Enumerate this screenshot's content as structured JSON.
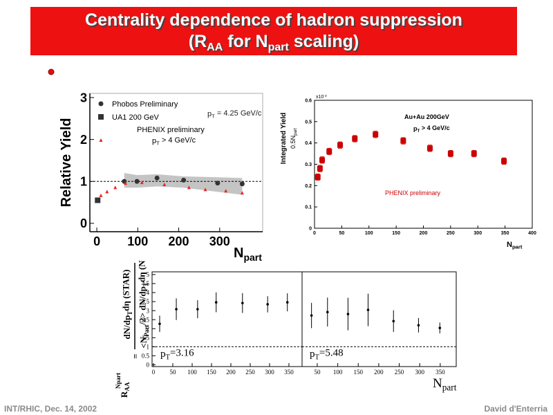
{
  "slide": {
    "title_line1": "Centrality dependence of hadron suppression",
    "title_line2": [
      "(R",
      "AA",
      " for N",
      "part",
      " scaling)"
    ],
    "footer_left": "INT/RHIC, Dec. 14, 2002",
    "footer_right": "David d'Enterria"
  },
  "chart_data": [
    {
      "type": "scatter",
      "ylabel": "Relative Yield",
      "xlabel": [
        "N",
        "part"
      ],
      "xlim": [
        -17,
        405
      ],
      "ylim": [
        -0.2,
        3.1
      ],
      "xticks": [
        0,
        100,
        200,
        300
      ],
      "yticks": [
        0,
        1,
        2,
        3
      ],
      "reference_line": 1,
      "legend_title": "PHENIX preliminary",
      "annotations": [
        {
          "text": [
            "p",
            "T",
            " = 4.25 GeV/c"
          ],
          "color": "#222222"
        }
      ],
      "series": [
        {
          "name": "Phobos Preliminary",
          "color": "#333333",
          "marker": "circle",
          "x": [
            67,
            98,
            147,
            212,
            295,
            355
          ],
          "values": [
            1.0,
            1.0,
            1.08,
            1.03,
            0.96,
            0.94
          ],
          "band": {
            "color": "#c4c4c4",
            "lower": [
              0.85,
              0.85,
              0.88,
              0.85,
              0.75,
              0.68
            ],
            "upper": [
              1.2,
              1.15,
              1.17,
              1.12,
              1.1,
              1.08
            ]
          }
        },
        {
          "name": "UA1 200 GeV",
          "color": "#333333",
          "marker": "square",
          "x": [
            2
          ],
          "values": [
            0.55
          ]
        },
        {
          "name": [
            "p",
            "T",
            " > 4 GeV/c"
          ],
          "color": "#ee2222",
          "marker": "triangle",
          "x": [
            10,
            25,
            45,
            70,
            110,
            165,
            225,
            265,
            315,
            355
          ],
          "values": [
            0.66,
            0.75,
            0.85,
            0.95,
            0.97,
            0.92,
            0.85,
            0.8,
            0.77,
            0.72
          ]
        }
      ]
    },
    {
      "type": "scatter",
      "ylabel": "Integrated Yield",
      "ylabel2": [
        "0.5N",
        "part"
      ],
      "xlabel": [
        "N",
        "part"
      ],
      "exponent": [
        "x10",
        "-3"
      ],
      "xlim": [
        0,
        400
      ],
      "ylim": [
        0,
        0.6
      ],
      "xticks": [
        0,
        50,
        100,
        150,
        200,
        250,
        300,
        350,
        400
      ],
      "yticks": [
        0,
        0.1,
        0.2,
        0.3,
        0.4,
        0.5,
        0.6
      ],
      "annotations": [
        {
          "text": "Au+Au 200GeV",
          "color": "#000000"
        },
        {
          "text": [
            "p",
            "T",
            " > 4 GeV/c"
          ],
          "color": "#000000"
        },
        {
          "text": "PHENIX preliminary",
          "color": "#cc0000"
        }
      ],
      "series": [
        {
          "color": "#cc0000",
          "marker": "square",
          "x": [
            6,
            10,
            14,
            27,
            47,
            74,
            112,
            163,
            212,
            250,
            293,
            348
          ],
          "values": [
            0.24,
            0.28,
            0.32,
            0.36,
            0.39,
            0.42,
            0.44,
            0.41,
            0.375,
            0.35,
            0.35,
            0.315
          ],
          "errors": [
            0.015,
            0.015,
            0.015,
            0.015,
            0.015,
            0.015,
            0.015,
            0.015,
            0.015,
            0.015,
            0.015,
            0.015
          ]
        }
      ]
    },
    {
      "type": "scatter",
      "ylabel": {
        "numerator": [
          "dN/dp",
          "T",
          "dη (STAR)"
        ],
        "denominator": [
          "<N",
          "Part",
          "/2> dN/dp",
          "T",
          "dη (N"
        ],
        "lhs": [
          "R",
          "AA"
        ],
        "lhs_sup": "Npart",
        "eq": "="
      },
      "xlim": [
        -3.6,
        384
      ],
      "ylim": [
        -0.1,
        5.15
      ],
      "xticks": [
        0,
        50,
        100,
        150,
        200,
        250,
        300,
        350
      ],
      "yticks": [
        0,
        0.5,
        1,
        1.5,
        2,
        2.5,
        3,
        3.5,
        4,
        4.5,
        5
      ],
      "reference_line": 1,
      "annotations": [
        {
          "text": [
            "p",
            "T",
            "=3.16"
          ],
          "color": "#000000"
        }
      ],
      "series": [
        {
          "color": "#000000",
          "marker": "dot",
          "x": [
            16,
            59,
            114,
            162,
            230,
            295,
            346
          ],
          "values": [
            2.27,
            3.08,
            3.08,
            3.46,
            3.42,
            3.35,
            3.46
          ],
          "errors": [
            0.45,
            0.6,
            0.5,
            0.55,
            0.55,
            0.45,
            0.5
          ]
        }
      ]
    },
    {
      "type": "scatter",
      "xlabel": [
        "N",
        "part"
      ],
      "xlim": [
        13,
        389
      ],
      "ylim": [
        -0.1,
        5.15
      ],
      "xticks": [
        50,
        100,
        150,
        200,
        250,
        300,
        350
      ],
      "reference_line": 1,
      "annotations": [
        {
          "text": [
            "p",
            "T",
            "=5.48"
          ],
          "color": "#000000"
        }
      ],
      "series": [
        {
          "color": "#000000",
          "marker": "dot",
          "x": [
            36,
            75,
            125,
            174,
            236,
            297,
            349
          ],
          "values": [
            2.73,
            2.92,
            2.81,
            3.04,
            2.42,
            2.19,
            2.04
          ],
          "errors": [
            0.7,
            0.8,
            0.9,
            0.9,
            0.6,
            0.4,
            0.3
          ]
        }
      ]
    }
  ]
}
